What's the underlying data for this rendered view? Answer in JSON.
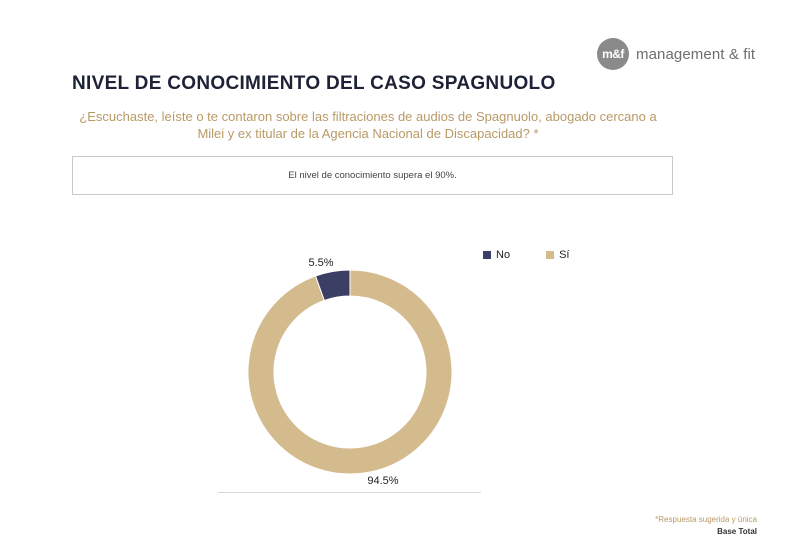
{
  "brand": {
    "mark": "m&f",
    "name": "management & fit"
  },
  "title": "NIVEL DE CONOCIMIENTO DEL CASO SPAGNUOLO",
  "question": "¿Escuchaste, leíste o te contaron sobre las filtraciones de audios de Spagnuolo, abogado cercano a Milei y ex titular de la Agencia Nacional de Discapacidad? *",
  "note": "El nivel de conocimiento supera el 90%.",
  "chart_data": {
    "type": "pie",
    "donut": true,
    "categories": [
      "No",
      "Sí"
    ],
    "values": [
      5.5,
      94.5
    ],
    "labels": [
      "5.5%",
      "94.5%"
    ],
    "colors": [
      "#3b3f63",
      "#d4bb8e"
    ],
    "legend_position": "top-right"
  },
  "footnote": {
    "line1": "*Respuesta sugerida y única",
    "line2": "Base Total"
  }
}
